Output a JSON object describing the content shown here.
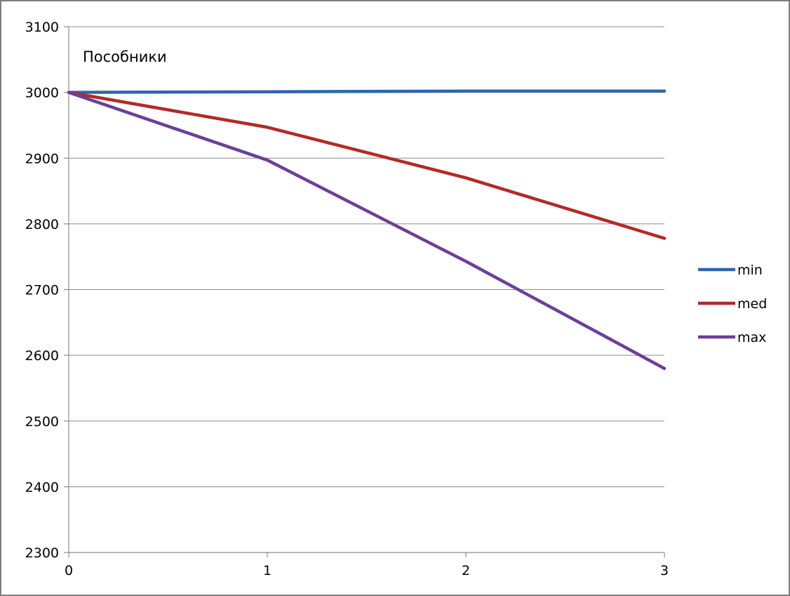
{
  "chart_data": {
    "type": "line",
    "title": "Пособники",
    "xlabel": "",
    "ylabel": "",
    "x": [
      0,
      1,
      2,
      3
    ],
    "xlim": [
      0,
      3
    ],
    "ylim": [
      2300,
      3100
    ],
    "xticks": [
      "0",
      "1",
      "2",
      "3"
    ],
    "yticks": [
      "3100",
      "3000",
      "2900",
      "2800",
      "2700",
      "2600",
      "2500",
      "2400",
      "2300"
    ],
    "grid": true,
    "legend_position": "right",
    "series": [
      {
        "name": "min",
        "color": "#2e66ab",
        "values": [
          3000,
          3001,
          3002,
          3002
        ]
      },
      {
        "name": "med",
        "color": "#b22a27",
        "values": [
          3000,
          2947,
          2870,
          2778
        ]
      },
      {
        "name": "max",
        "color": "#6b3f97",
        "values": [
          3000,
          2897,
          2743,
          2580
        ]
      }
    ]
  }
}
